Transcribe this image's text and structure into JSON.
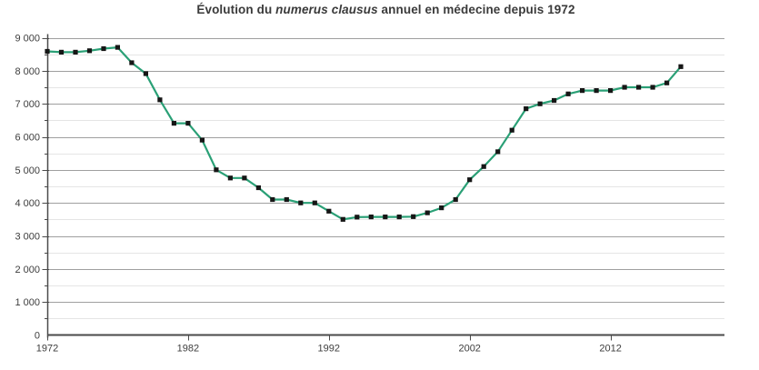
{
  "title": {
    "prefix": "Évolution du ",
    "italic": "numerus clausus",
    "suffix": " annuel en médecine depuis 1972"
  },
  "chart_data": {
    "type": "line",
    "title": "Évolution du numerus clausus annuel en médecine depuis 1972",
    "series_name": "Numerus clausus annuel en médecine",
    "x": [
      1972,
      1973,
      1974,
      1975,
      1976,
      1977,
      1978,
      1979,
      1980,
      1981,
      1982,
      1983,
      1984,
      1985,
      1986,
      1987,
      1988,
      1989,
      1990,
      1991,
      1992,
      1993,
      1994,
      1995,
      1996,
      1997,
      1998,
      1999,
      2000,
      2001,
      2002,
      2003,
      2004,
      2005,
      2006,
      2007,
      2008,
      2009,
      2010,
      2011,
      2012,
      2013,
      2014,
      2015,
      2016,
      2017
    ],
    "values": [
      8588,
      8563,
      8563,
      8607,
      8671,
      8708,
      8242,
      7913,
      7121,
      6409,
      6409,
      5900,
      5000,
      4754,
      4754,
      4460,
      4100,
      4100,
      4000,
      4000,
      3750,
      3500,
      3570,
      3576,
      3576,
      3576,
      3583,
      3700,
      3850,
      4100,
      4700,
      5100,
      5550,
      6200,
      6850,
      7000,
      7100,
      7300,
      7400,
      7400,
      7400,
      7500,
      7500,
      7500,
      7633,
      8124
    ],
    "xlabel": "",
    "ylabel": "",
    "ylim": [
      0,
      9000
    ],
    "xlim": [
      1972,
      2020
    ],
    "y_major_step": 1000,
    "y_minor_step": 500,
    "x_tick_years": [
      1972,
      1982,
      1992,
      2002,
      2012
    ],
    "y_tick_labels": [
      "0",
      "1 000",
      "2 000",
      "3 000",
      "4 000",
      "5 000",
      "6 000",
      "7 000",
      "8 000",
      "9 000"
    ],
    "x_tick_labels": [
      "1972",
      "1982",
      "1992",
      "2002",
      "2012"
    ],
    "grid": "major-and-minor-horizontal",
    "legend_position": "none",
    "marker_shape": "square",
    "colors": {
      "line": "#2aa076",
      "marker": "#161616",
      "grid_major": "#9f9f9f",
      "grid_minor": "#e5e5e5",
      "axis": "#4a4a4a",
      "label": "#3d3d3d",
      "title": "#3a3a3a",
      "background": "#ffffff"
    }
  }
}
